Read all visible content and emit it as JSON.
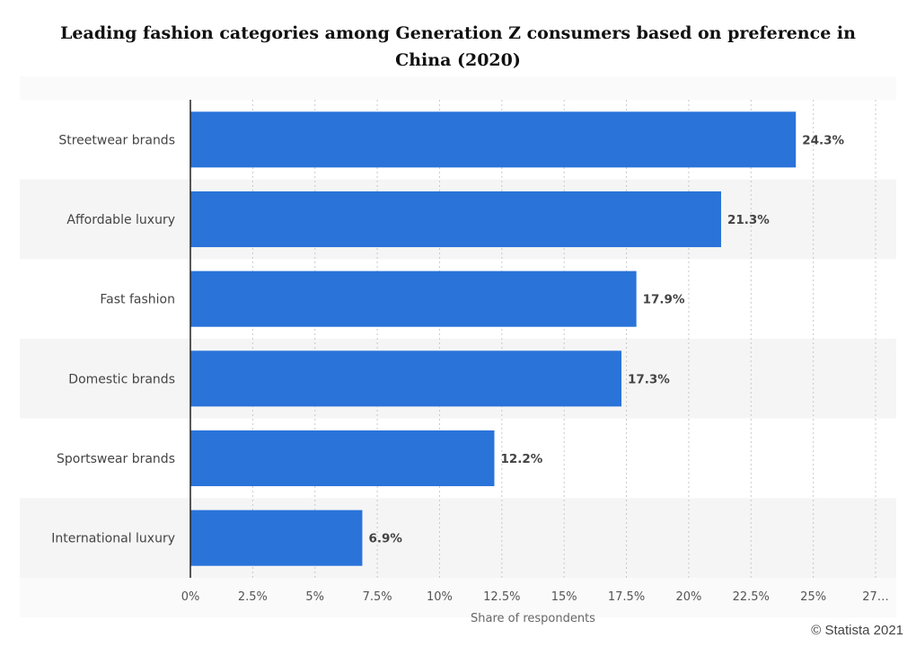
{
  "chart_data": {
    "type": "bar",
    "orientation": "horizontal",
    "title": "Leading fashion categories among Generation Z consumers based on preference in China (2020)",
    "xlabel": "Share of respondents",
    "ylabel": "",
    "categories": [
      "Streetwear brands",
      "Affordable luxury",
      "Fast fashion",
      "Domestic brands",
      "Sportswear brands",
      "International luxury"
    ],
    "values": [
      24.3,
      21.3,
      17.9,
      17.3,
      12.2,
      6.9
    ],
    "value_labels": [
      "24.3%",
      "21.3%",
      "17.9%",
      "17.3%",
      "12.2%",
      "6.9%"
    ],
    "xlim": [
      0,
      27.5
    ],
    "xticks": [
      0,
      2.5,
      5,
      7.5,
      10,
      12.5,
      15,
      17.5,
      20,
      22.5,
      25,
      27.5
    ],
    "xtick_labels": [
      "0%",
      "2.5%",
      "5%",
      "7.5%",
      "10%",
      "12.5%",
      "15%",
      "17.5%",
      "20%",
      "22.5%",
      "25%",
      "27…"
    ],
    "grid": true,
    "legend": "none",
    "bar_color": "#2a74d9",
    "alt_row_color": "#f5f5f5"
  },
  "copyright": "© Statista 2021"
}
